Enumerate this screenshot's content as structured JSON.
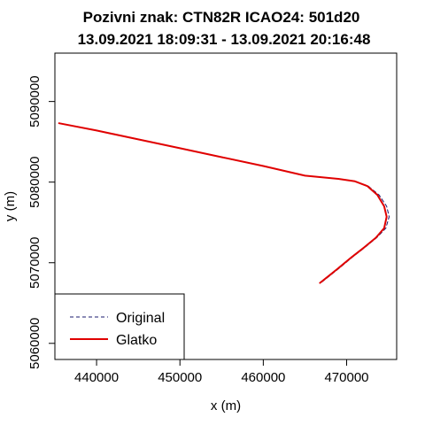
{
  "chart_data": {
    "type": "line",
    "title_line1": "Pozivni znak: CTN82R    ICAO24: 501d20",
    "title_line2": "13.09.2021 18:09:31 - 13.09.2021 20:16:48",
    "xlabel": "x (m)",
    "ylabel": "y (m)",
    "xlim": [
      435000,
      476000
    ],
    "ylim": [
      5058000,
      5096000
    ],
    "xticks": [
      440000,
      450000,
      460000,
      470000
    ],
    "yticks": [
      5060000,
      5070000,
      5080000,
      5090000
    ],
    "xtick_labels": [
      "440000",
      "450000",
      "460000",
      "470000"
    ],
    "ytick_labels": [
      "5060000",
      "5070000",
      "5080000",
      "5090000"
    ],
    "legend_position": "bottom-left",
    "series": [
      {
        "name": "Original",
        "color": "#1a1a6e",
        "style": "dashed",
        "x": [
          435500,
          440000,
          445000,
          450000,
          455000,
          460000,
          465000,
          469000,
          471000,
          472600,
          473900,
          474800,
          475100,
          474700,
          473600,
          472200,
          470700,
          469200,
          468000,
          466900
        ],
        "y": [
          5087300,
          5086400,
          5085300,
          5084200,
          5083100,
          5082000,
          5080800,
          5080400,
          5080100,
          5079500,
          5078400,
          5077000,
          5075700,
          5074300,
          5073100,
          5071900,
          5070700,
          5069400,
          5068400,
          5067500
        ]
      },
      {
        "name": "Glatko",
        "color": "#e00000",
        "style": "solid",
        "x": [
          435500,
          440000,
          445000,
          450000,
          455000,
          460000,
          465000,
          469000,
          471000,
          472500,
          473700,
          474500,
          474800,
          474500,
          473500,
          472100,
          470600,
          469100,
          467900,
          466800
        ],
        "y": [
          5087300,
          5086400,
          5085300,
          5084200,
          5083100,
          5082000,
          5080800,
          5080400,
          5080100,
          5079500,
          5078400,
          5077000,
          5075700,
          5074300,
          5073100,
          5071900,
          5070700,
          5069400,
          5068400,
          5067500
        ]
      }
    ]
  }
}
